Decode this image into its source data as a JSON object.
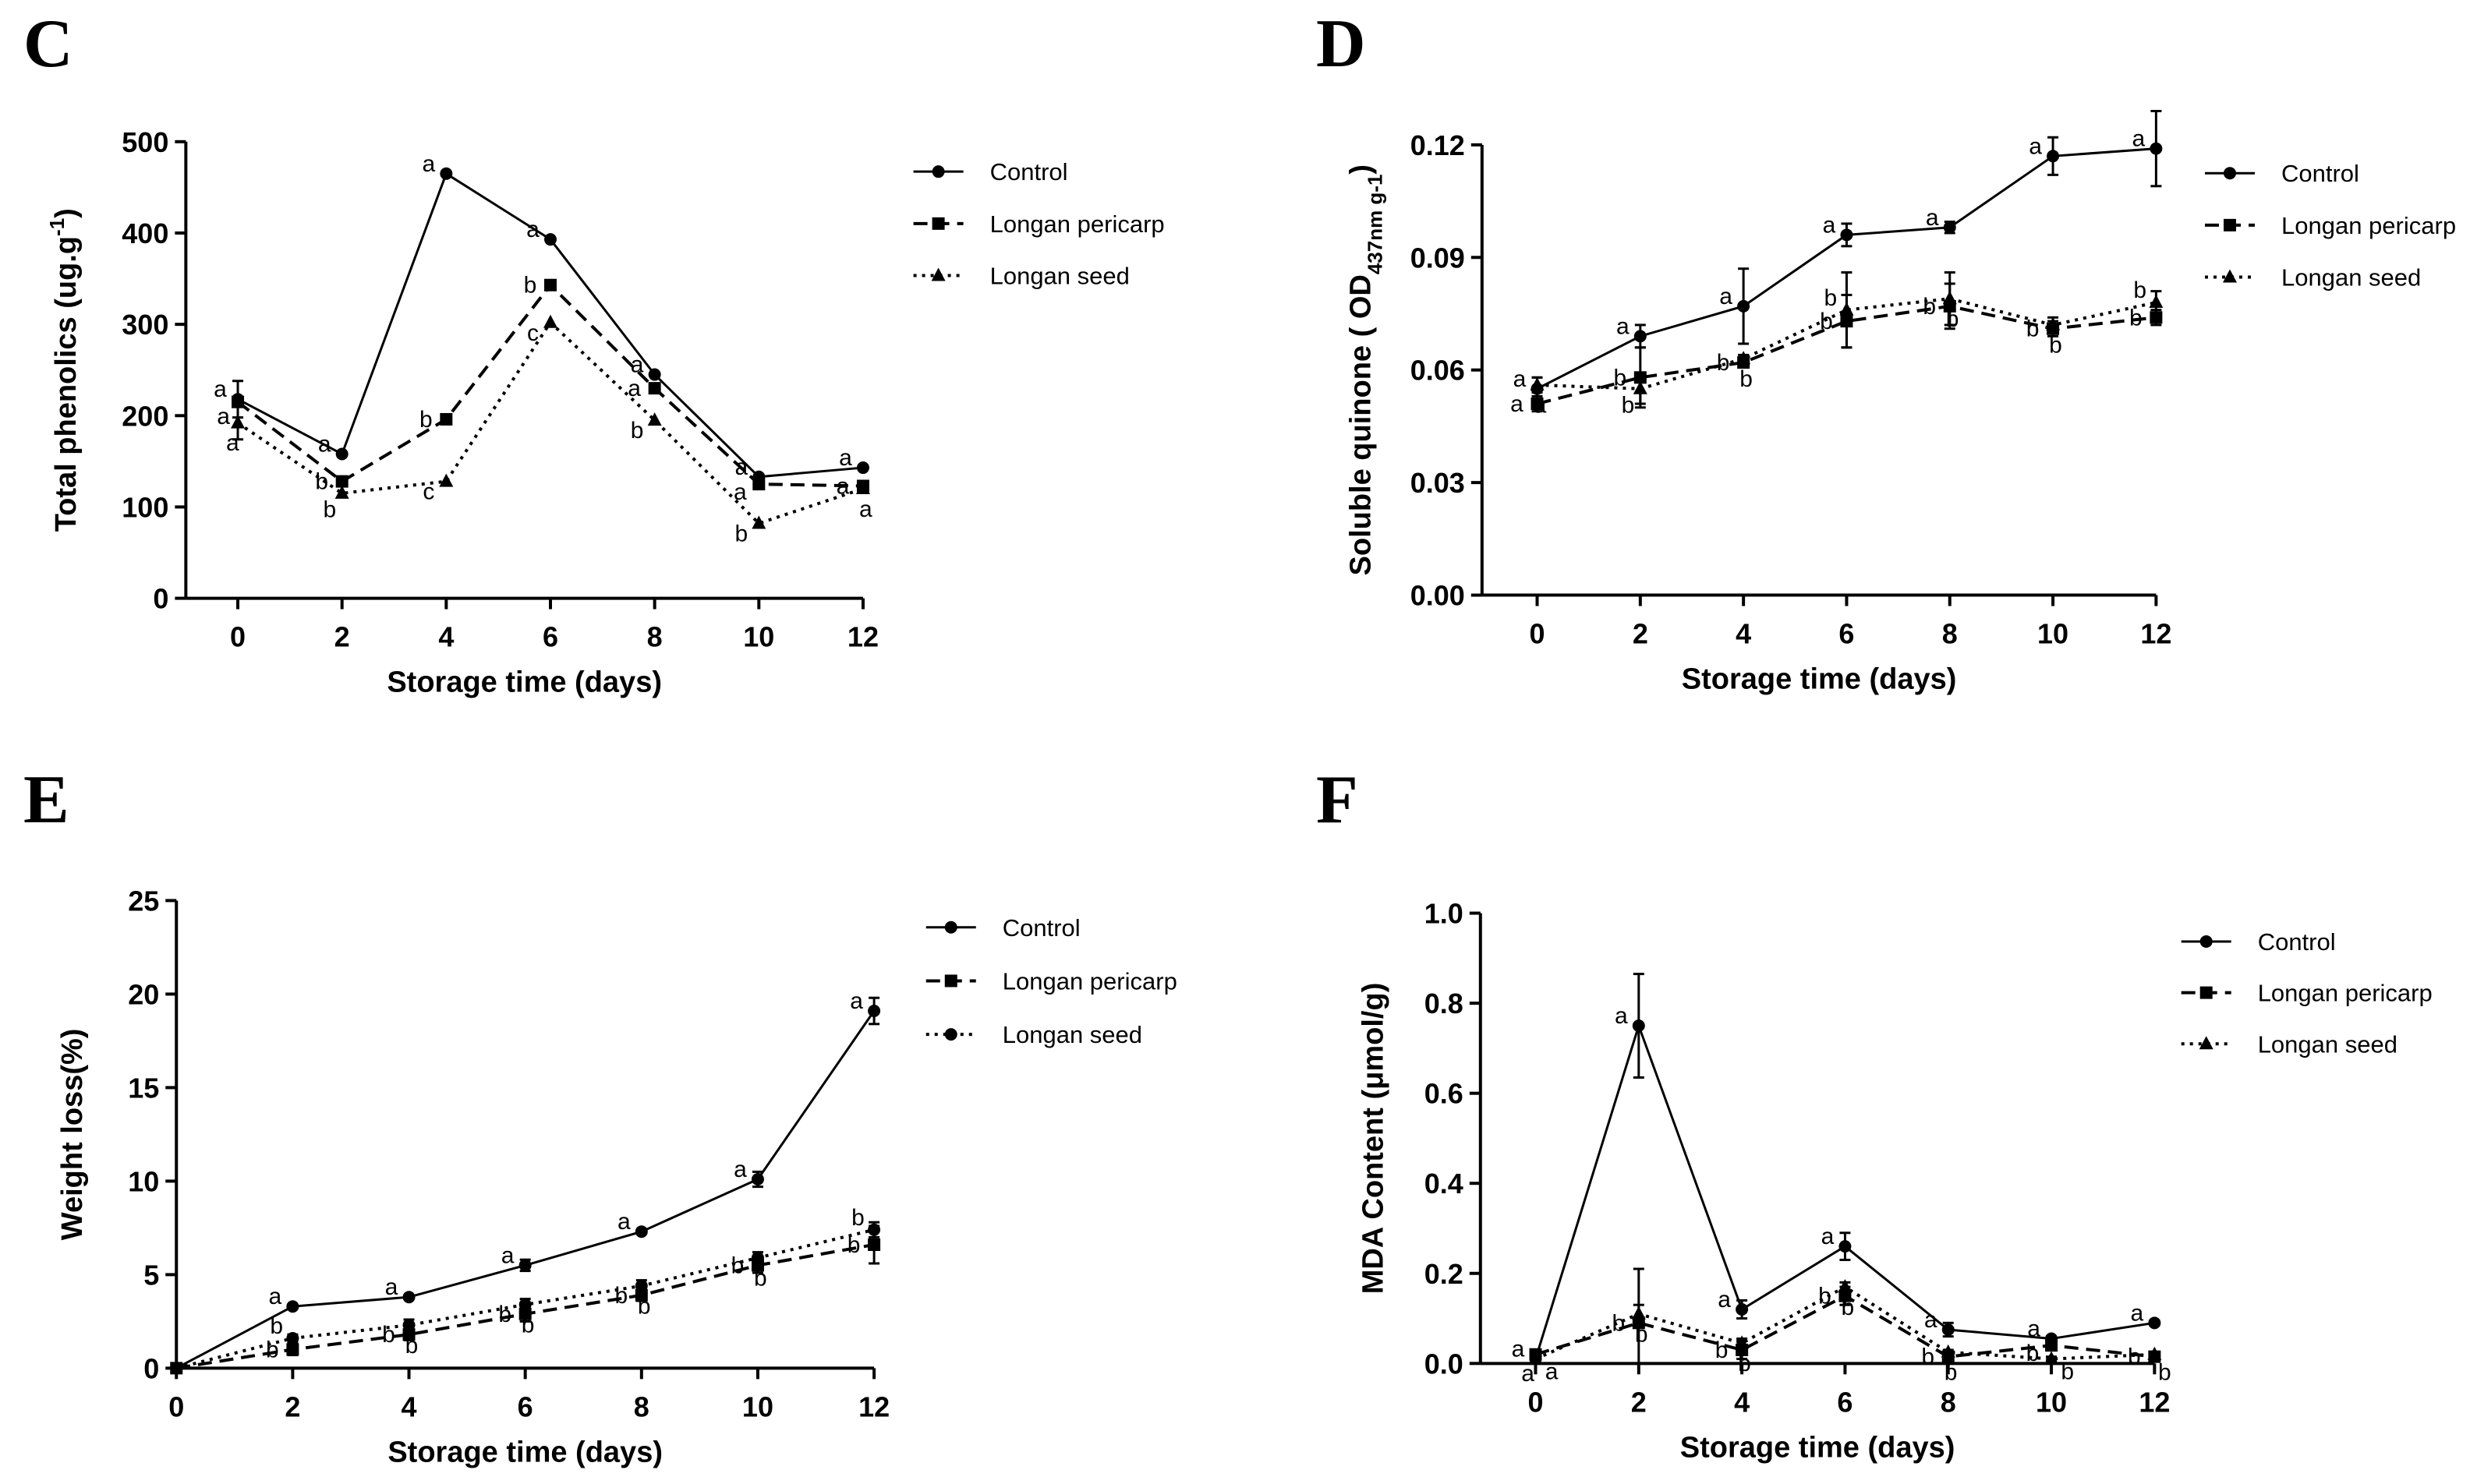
{
  "chart_data": [
    {
      "panel": "C",
      "type": "line",
      "xlabel": "Storage time (days)",
      "ylabel": {
        "main": "Total phenolics (ug.g",
        "sup": "-1",
        "sub": "",
        "end": ")"
      },
      "x": [
        0,
        2,
        4,
        6,
        8,
        10,
        12
      ],
      "xticks": [
        "0",
        "2",
        "4",
        "6",
        "8",
        "10",
        "12"
      ],
      "ylim": [
        0,
        500
      ],
      "yticks": [
        "0",
        "100",
        "200",
        "300",
        "400",
        "500"
      ],
      "legend_position": "top-right",
      "series": [
        {
          "name": "Control",
          "marker": "circle",
          "line": "solid",
          "values": [
            218,
            158,
            465,
            393,
            245,
            133,
            143
          ],
          "error": [
            20,
            0,
            0,
            0,
            0,
            0,
            0
          ],
          "letters": [
            "a",
            "a",
            "a",
            "a",
            "a",
            "a",
            "a"
          ]
        },
        {
          "name": "Longan pericarp",
          "marker": "square",
          "line": "dashed",
          "values": [
            215,
            128,
            196,
            343,
            230,
            125,
            123
          ],
          "error": [
            0,
            0,
            0,
            0,
            0,
            0,
            0
          ],
          "letters": [
            "a",
            "b",
            "b",
            "b",
            "a",
            "a",
            "a"
          ]
        },
        {
          "name": "Longan seed",
          "marker": "triangle",
          "line": "dotted",
          "values": [
            192,
            115,
            128,
            302,
            195,
            82,
            120
          ],
          "error": [
            18,
            0,
            0,
            0,
            0,
            0,
            0
          ],
          "letters": [
            "a",
            "b",
            "c",
            "c",
            "b",
            "b",
            "a"
          ]
        }
      ]
    },
    {
      "panel": "D",
      "type": "line",
      "xlabel": "Storage time (days)",
      "ylabel": {
        "main": "Soluble quinone ( OD",
        "sup": "",
        "sub": "437nm g-1",
        "end": ")"
      },
      "x": [
        0,
        2,
        4,
        6,
        8,
        10,
        12
      ],
      "xticks": [
        "0",
        "2",
        "4",
        "6",
        "8",
        "10",
        "12"
      ],
      "ylim": [
        0,
        0.12
      ],
      "yticks": [
        "0.00",
        "0.03",
        "0.06",
        "0.09",
        "0.12"
      ],
      "legend_position": "top-right",
      "series": [
        {
          "name": "Control",
          "marker": "circle",
          "line": "solid",
          "values": [
            0.055,
            0.069,
            0.077,
            0.096,
            0.098,
            0.117,
            0.119
          ],
          "error": [
            0.003,
            0.003,
            0.01,
            0.003,
            0.0015,
            0.005,
            0.01
          ],
          "letters": [
            "a",
            "a",
            "a",
            "a",
            "a",
            "a",
            "a"
          ]
        },
        {
          "name": "Longan pericarp",
          "marker": "square",
          "line": "dashed",
          "values": [
            0.051,
            0.058,
            0.062,
            0.073,
            0.077,
            0.071,
            0.074
          ],
          "error": [
            0.002,
            0.008,
            0.001,
            0.007,
            0.006,
            0.002,
            0.002
          ],
          "letters": [
            "a",
            "b",
            "b",
            "b",
            "b",
            "b",
            "b"
          ]
        },
        {
          "name": "Longan seed",
          "marker": "triangle",
          "line": "dotted",
          "values": [
            0.056,
            0.055,
            0.063,
            0.076,
            0.079,
            0.072,
            0.078
          ],
          "error": [
            0.002,
            0.004,
            0.001,
            0.01,
            0.007,
            0.002,
            0.003
          ],
          "letters": [
            "a",
            "b",
            "b",
            "b",
            "b",
            "b",
            "b"
          ]
        }
      ]
    },
    {
      "panel": "E",
      "type": "line",
      "xlabel": "Storage time (days)",
      "ylabel": {
        "main": "Weight loss(%)",
        "sup": "",
        "sub": "",
        "end": ""
      },
      "x": [
        0,
        2,
        4,
        6,
        8,
        10,
        12
      ],
      "xticks": [
        "0",
        "2",
        "4",
        "6",
        "8",
        "10",
        "12"
      ],
      "ylim": [
        0,
        25
      ],
      "yticks": [
        "0",
        "5",
        "10",
        "15",
        "20",
        "25"
      ],
      "legend_position": "top-right",
      "series": [
        {
          "name": "Control",
          "marker": "circle",
          "line": "solid",
          "values": [
            0,
            3.3,
            3.8,
            5.5,
            7.3,
            10.1,
            19.1
          ],
          "error": [
            0,
            0.1,
            0.1,
            0.3,
            0.1,
            0.4,
            0.7
          ],
          "letters": [
            "",
            "a",
            "a",
            "a",
            "a",
            "a",
            "a"
          ]
        },
        {
          "name": "Longan pericarp",
          "marker": "square",
          "line": "dashed",
          "values": [
            0,
            1.0,
            1.8,
            2.9,
            3.9,
            5.5,
            6.6
          ],
          "error": [
            0,
            0.3,
            0.3,
            0.4,
            0.3,
            0.4,
            1.0
          ],
          "letters": [
            "",
            "b",
            "b",
            "b",
            "b",
            "b",
            "b"
          ]
        },
        {
          "name": "Longan seed",
          "marker": "circle",
          "line": "dotted",
          "values": [
            0,
            1.6,
            2.3,
            3.4,
            4.4,
            5.9,
            7.4
          ],
          "error": [
            0,
            0.2,
            0.3,
            0.3,
            0.3,
            0.3,
            0.4
          ],
          "letters": [
            "",
            "b",
            "b",
            "b",
            "b",
            "b",
            "b"
          ]
        }
      ]
    },
    {
      "panel": "F",
      "type": "line",
      "xlabel": "Storage time (days)",
      "ylabel": {
        "main": "MDA Content  (μmol/g)",
        "sup": "",
        "sub": "",
        "end": ""
      },
      "x": [
        0,
        2,
        4,
        6,
        8,
        10,
        12
      ],
      "xticks": [
        "0",
        "2",
        "4",
        "6",
        "8",
        "10",
        "12"
      ],
      "ylim": [
        0,
        1.0
      ],
      "yticks": [
        "0.0",
        "0.2",
        "0.4",
        "0.6",
        "0.8",
        "1.0"
      ],
      "legend_position": "top-right",
      "series": [
        {
          "name": "Control",
          "marker": "circle",
          "line": "solid",
          "values": [
            0.01,
            0.75,
            0.12,
            0.26,
            0.075,
            0.055,
            0.09
          ],
          "error": [
            0.02,
            0.115,
            0.02,
            0.03,
            0.015,
            0.005,
            0.005
          ],
          "letters": [
            "a",
            "a",
            "a",
            "a",
            "a",
            "a",
            "a"
          ]
        },
        {
          "name": "Longan pericarp",
          "marker": "square",
          "line": "dashed",
          "values": [
            0.02,
            0.09,
            0.03,
            0.15,
            0.015,
            0.04,
            0.015
          ],
          "error": [
            0.01,
            0.12,
            0.02,
            0.02,
            0.01,
            0.01,
            0.01
          ],
          "letters": [
            "a",
            "b",
            "b",
            "b",
            "b",
            "b",
            "b"
          ]
        },
        {
          "name": "Longan seed",
          "marker": "triangle",
          "line": "dotted",
          "values": [
            0.01,
            0.11,
            0.045,
            0.17,
            0.025,
            0.01,
            0.02
          ],
          "error": [
            0.01,
            0.02,
            0.01,
            0.01,
            0.005,
            0.005,
            0.005
          ],
          "letters": [
            "a",
            "b",
            "b",
            "b",
            "b",
            "b",
            "b"
          ]
        }
      ]
    }
  ]
}
